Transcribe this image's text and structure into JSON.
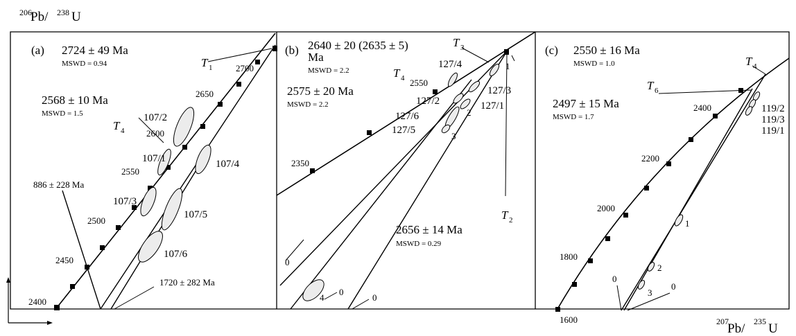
{
  "chart_data": [
    {
      "panel": "(a)",
      "type": "scatter",
      "kind": "concordia diagram",
      "ylabel_pre": "206",
      "ylabel_el": "Pb/",
      "ylabel_sup": "238",
      "ylabel_unit": "U",
      "concordia_ages": [
        "2400",
        "2450",
        "2500",
        "2550",
        "2600",
        "2650",
        "2700"
      ],
      "discordia": [
        {
          "age": "2724 ± 49 Ma",
          "mswd": "MSWD = 0.94",
          "label_main": "T",
          "label_sub": "1"
        },
        {
          "age": "2568 ± 10  Ma",
          "mswd": "MSWD = 1.5",
          "label_main": "T",
          "label_sub": "4"
        }
      ],
      "lower_intercepts": [
        "886 ± 228 Ma",
        "1720 ± 282 Ma"
      ],
      "points": [
        "107/1",
        "107/2",
        "107/3",
        "107/4",
        "107/5",
        "107/6"
      ]
    },
    {
      "panel": "(b)",
      "type": "scatter",
      "kind": "concordia diagram",
      "concordia_ages": [
        "2350",
        "2550"
      ],
      "discordia": [
        {
          "age": "2640 ± 20 (2635 ± 5)",
          "age_unit": "Ma",
          "mswd": "MSWD = 2.2",
          "label_main": "T",
          "label_sub": "3"
        },
        {
          "age": "2575 ± 20 Ma",
          "mswd": "MSWD = 2.2",
          "label_main": "T",
          "label_sub": "4"
        },
        {
          "age": "2656 ± 14 Ma",
          "mswd": "MSWD = 0.29",
          "label_main": "T",
          "label_sub": "2"
        }
      ],
      "lower_intercepts": [
        "0",
        "0",
        "0"
      ],
      "points": [
        "127/4",
        "127/3",
        "127/2",
        "127/1",
        "127/6",
        "127/5",
        "1",
        "2",
        "3",
        "4"
      ]
    },
    {
      "panel": "(c)",
      "type": "scatter",
      "kind": "concordia diagram",
      "xlabel_pre": "207",
      "xlabel_el": "Pb/",
      "xlabel_sup": "235",
      "xlabel_unit": "U",
      "concordia_ages": [
        "1600",
        "1800",
        "2000",
        "2200",
        "2400"
      ],
      "discordia": [
        {
          "age": "2550 ± 16 Ma",
          "mswd": "MSWD = 1.0",
          "label_main": "T",
          "label_sub": "4"
        },
        {
          "age": "2497 ± 15 Ma",
          "mswd": "MSWD = 1.7",
          "label_main": "T",
          "label_sub": "6"
        }
      ],
      "lower_intercepts": [
        "0",
        "0"
      ],
      "points": [
        "119/2",
        "119/3",
        "119/1",
        "1",
        "2",
        "3"
      ]
    }
  ]
}
